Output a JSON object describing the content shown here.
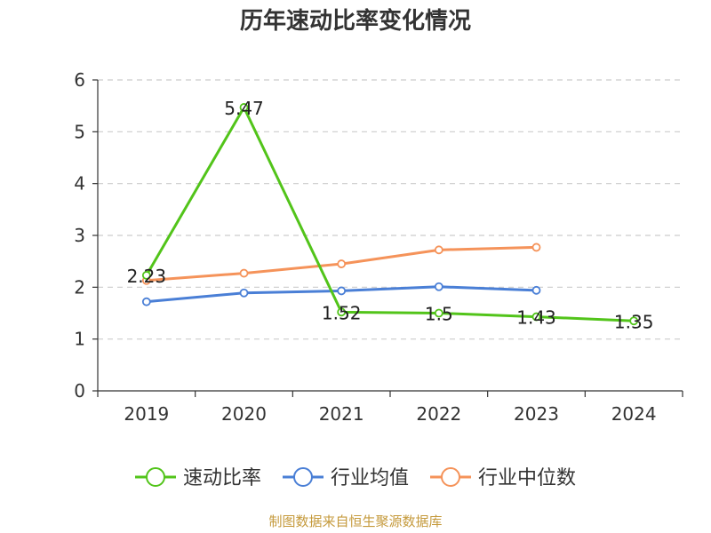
{
  "chart_data": {
    "type": "line",
    "title": "历年速动比率变化情况",
    "categories": [
      "2019",
      "2020",
      "2021",
      "2022",
      "2023",
      "2024"
    ],
    "ylim": [
      0,
      6
    ],
    "yticks": [
      0,
      1,
      2,
      3,
      4,
      5,
      6
    ],
    "grid": "horizontal dashed",
    "legend_position": "bottom",
    "series": [
      {
        "name": "速动比率",
        "color": "#52c41a",
        "values": [
          2.23,
          5.47,
          1.52,
          1.5,
          1.43,
          1.35
        ],
        "labels": [
          "2.23",
          "5.47",
          "1.52",
          "1.5",
          "1.43",
          "1.35"
        ]
      },
      {
        "name": "行业均值",
        "color": "#4a7fd6",
        "values": [
          1.72,
          1.89,
          1.93,
          2.01,
          1.94,
          null
        ]
      },
      {
        "name": "行业中位数",
        "color": "#f5935a",
        "values": [
          2.13,
          2.27,
          2.45,
          2.72,
          2.77,
          null
        ]
      }
    ]
  },
  "source": "制图数据来自恒生聚源数据库"
}
